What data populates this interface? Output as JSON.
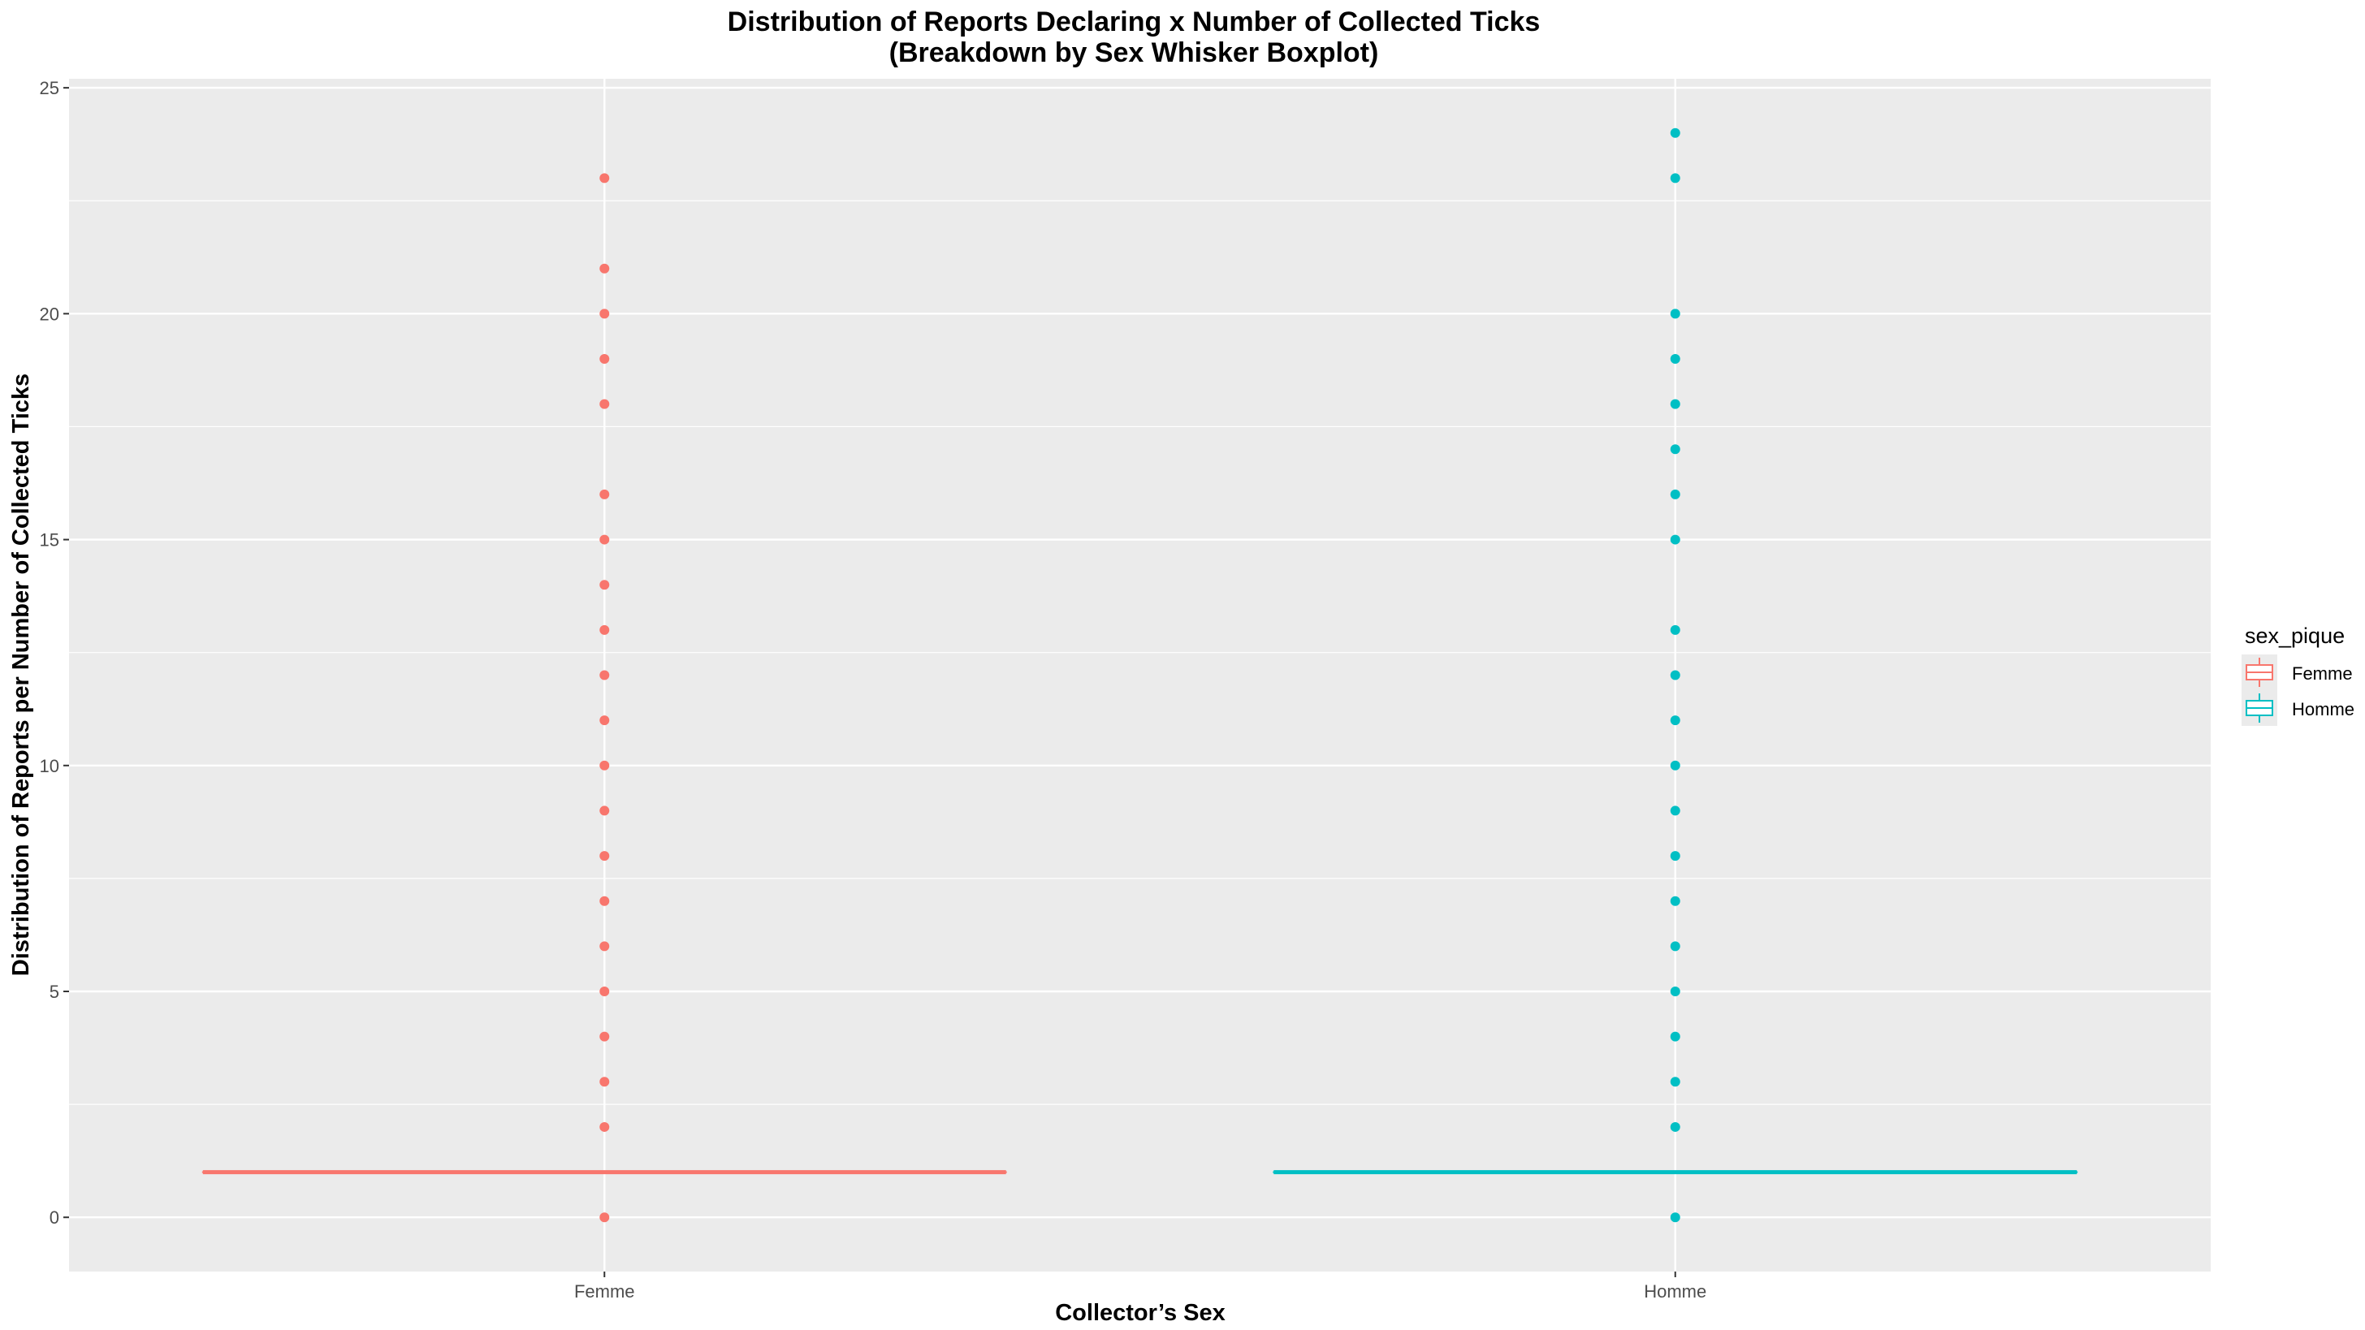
{
  "chart_data": {
    "type": "boxplot",
    "title": "Distribution of Reports Declaring x Number of Collected Ticks",
    "subtitle": "(Breakdown by Sex Whisker Boxplot)",
    "xlabel": "Collector’s Sex",
    "ylabel": "Distribution of Reports per Number of Collected Ticks",
    "categories": [
      "Femme",
      "Homme"
    ],
    "ylim": [
      -1.2,
      25.2
    ],
    "yticks": [
      0,
      5,
      10,
      15,
      20,
      25
    ],
    "grid": true,
    "legend": {
      "title": "sex_pique",
      "position": "right",
      "entries": [
        "Femme",
        "Homme"
      ]
    },
    "colors": {
      "Femme": "#F8766D",
      "Homme": "#00BFC4"
    },
    "series": [
      {
        "name": "Femme",
        "median": 1,
        "q1": 1,
        "q3": 1,
        "whisker_low": 1,
        "whisker_high": 1,
        "outliers": [
          0,
          2,
          3,
          4,
          5,
          6,
          7,
          8,
          9,
          10,
          11,
          12,
          13,
          14,
          15,
          16,
          18,
          19,
          20,
          21,
          23
        ]
      },
      {
        "name": "Homme",
        "median": 1,
        "q1": 1,
        "q3": 1,
        "whisker_low": 1,
        "whisker_high": 1,
        "outliers": [
          0,
          2,
          3,
          4,
          5,
          6,
          7,
          8,
          9,
          10,
          11,
          12,
          13,
          15,
          16,
          17,
          18,
          19,
          20,
          23,
          24
        ]
      }
    ]
  }
}
